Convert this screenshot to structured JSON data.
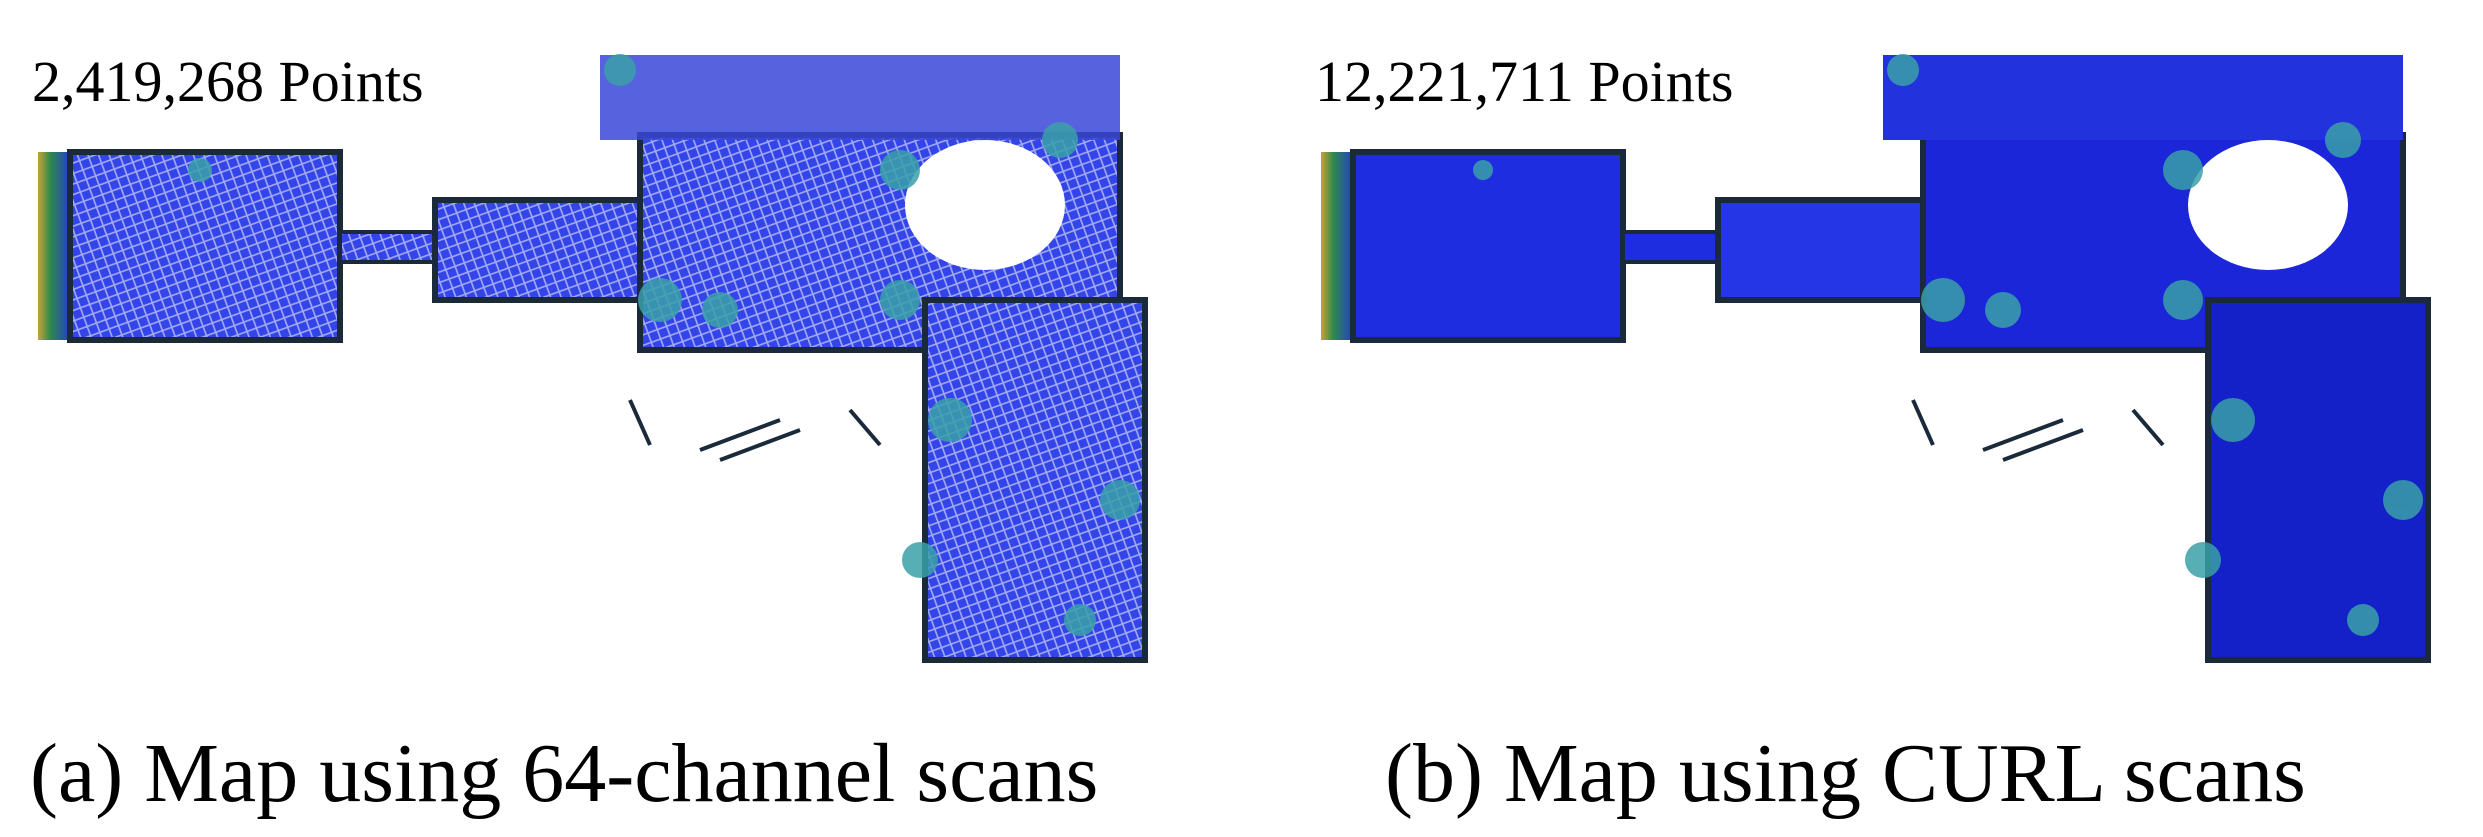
{
  "panels": [
    {
      "points": "2,419,268 Points",
      "caption": "(a) Map using 64-channel scans",
      "fill": "#2a3be6",
      "texture": "mesh"
    },
    {
      "points": "12,221,711 Points",
      "caption": "(b) Map using CURL scans",
      "fill": "#1f2de0",
      "texture": "solid"
    }
  ],
  "colors": {
    "blue": "#2233dd",
    "teal": "#3aa0a8",
    "green": "#2f8a4a",
    "gold": "#c8a13a",
    "dark": "#1a2a3a"
  }
}
